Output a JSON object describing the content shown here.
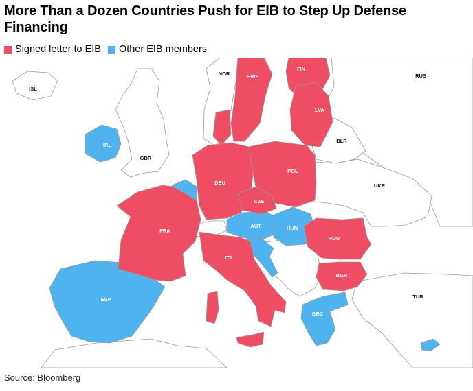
{
  "title": "More Than a Dozen Countries Push for EIB to Step Up Defense Financing",
  "colors": {
    "signed": "#ee4d63",
    "other": "#4eb3ef",
    "nonmember": "#ffffff",
    "border": "#9a9a9a"
  },
  "legend": {
    "signed_label": "Signed letter to EIB",
    "other_label": "Other EIB members"
  },
  "labels": {
    "isl": "ISL",
    "nor": "NOR",
    "swe": "SWE",
    "fin": "FIN",
    "rus": "RUS",
    "lva": "LVA",
    "irl": "IRL",
    "gbr": "GBR",
    "blr": "BLR",
    "deu": "DEU",
    "pol": "POL",
    "ukr": "UKR",
    "cze": "CZE",
    "fra": "FRA",
    "aut": "AUT",
    "hun": "HUN",
    "rou": "ROU",
    "ita": "ITA",
    "bgr": "BGR",
    "esp": "ESP",
    "tur": "TUR",
    "grc": "GRC"
  },
  "source": "Source: Bloomberg"
}
